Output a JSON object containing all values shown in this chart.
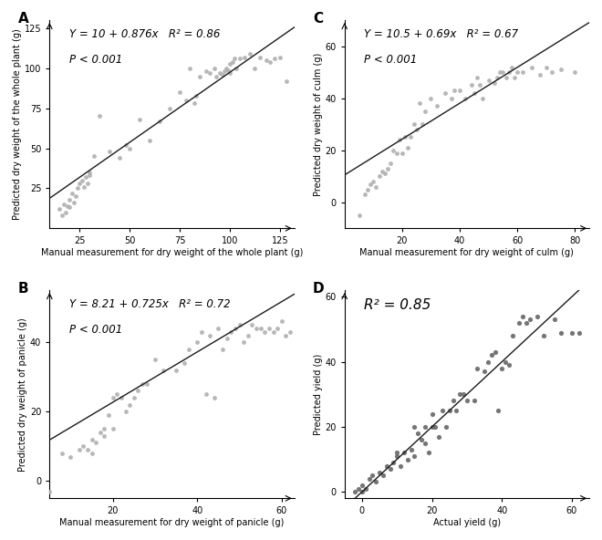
{
  "panel_A": {
    "label": "A",
    "x": [
      15,
      16,
      17,
      18,
      19,
      20,
      20,
      21,
      22,
      23,
      24,
      25,
      26,
      27,
      28,
      29,
      30,
      30,
      32,
      35,
      40,
      45,
      48,
      50,
      55,
      60,
      65,
      70,
      75,
      78,
      80,
      82,
      83,
      85,
      88,
      90,
      92,
      93,
      95,
      96,
      97,
      98,
      99,
      100,
      100,
      101,
      102,
      103,
      105,
      107,
      110,
      112,
      115,
      118,
      120,
      122,
      125,
      128
    ],
    "y": [
      12,
      8,
      15,
      10,
      14,
      13,
      18,
      22,
      16,
      20,
      25,
      28,
      30,
      26,
      32,
      28,
      35,
      33,
      45,
      70,
      48,
      44,
      52,
      50,
      68,
      55,
      67,
      75,
      85,
      80,
      100,
      78,
      83,
      95,
      98,
      97,
      100,
      95,
      97,
      96,
      98,
      100,
      99,
      103,
      97,
      104,
      106,
      100,
      106,
      107,
      109,
      100,
      107,
      105,
      104,
      106,
      107,
      92
    ],
    "intercept": 10,
    "slope": 0.876,
    "r2": 0.86,
    "xlabel": "Manual measurement for dry weight of the whole plant (g)",
    "ylabel": "Predicted dry weight of the whole plant (g)",
    "xlim": [
      10,
      132
    ],
    "ylim": [
      0,
      130
    ],
    "xticks": [
      25,
      50,
      75,
      100,
      125
    ],
    "yticks": [
      25,
      50,
      75,
      100,
      125
    ],
    "eq_text": "Y = 10 + 0.876x",
    "r2_text": "R² = 0.86",
    "p_text": "P < 0.001",
    "line_x": [
      10,
      132
    ]
  },
  "panel_B": {
    "label": "B",
    "x": [
      5,
      8,
      10,
      12,
      13,
      14,
      15,
      15,
      16,
      17,
      18,
      18,
      19,
      20,
      20,
      21,
      22,
      23,
      24,
      25,
      26,
      27,
      28,
      30,
      32,
      35,
      37,
      38,
      40,
      41,
      42,
      43,
      44,
      45,
      46,
      47,
      48,
      49,
      50,
      51,
      52,
      53,
      54,
      55,
      56,
      57,
      58,
      59,
      60,
      61,
      62
    ],
    "y": [
      -3,
      8,
      7,
      9,
      10,
      9,
      8,
      12,
      11,
      14,
      13,
      15,
      19,
      15,
      24,
      25,
      24,
      20,
      22,
      24,
      26,
      28,
      28,
      35,
      32,
      32,
      34,
      38,
      40,
      43,
      25,
      42,
      24,
      44,
      38,
      41,
      43,
      44,
      45,
      40,
      42,
      45,
      44,
      44,
      43,
      44,
      43,
      44,
      46,
      42,
      43
    ],
    "intercept": 8.21,
    "slope": 0.725,
    "r2": 0.72,
    "xlabel": "Manual measurement for dry weight of panicle (g)",
    "ylabel": "Predicted dry weight of panicle (g)",
    "xlim": [
      5,
      63
    ],
    "ylim": [
      -5,
      55
    ],
    "xticks": [
      20,
      40,
      60
    ],
    "yticks": [
      0,
      20,
      40
    ],
    "eq_text": "Y = 8.21 + 0.725x",
    "r2_text": "R² = 0.72",
    "p_text": "P < 0.001",
    "line_x": [
      5,
      63
    ]
  },
  "panel_C": {
    "label": "C",
    "x": [
      5,
      7,
      8,
      9,
      10,
      11,
      12,
      13,
      14,
      15,
      16,
      17,
      18,
      19,
      20,
      21,
      22,
      23,
      24,
      25,
      26,
      27,
      28,
      30,
      32,
      35,
      37,
      38,
      40,
      42,
      44,
      45,
      46,
      47,
      48,
      50,
      52,
      53,
      54,
      55,
      56,
      57,
      58,
      59,
      60,
      62,
      65,
      68,
      70,
      72,
      75,
      80
    ],
    "y": [
      -5,
      3,
      5,
      7,
      8,
      6,
      10,
      12,
      11,
      13,
      15,
      20,
      19,
      24,
      19,
      25,
      21,
      25,
      30,
      28,
      38,
      30,
      35,
      40,
      37,
      42,
      40,
      43,
      43,
      40,
      45,
      42,
      48,
      45,
      40,
      47,
      46,
      48,
      50,
      50,
      48,
      50,
      52,
      48,
      50,
      50,
      52,
      49,
      52,
      50,
      51,
      50
    ],
    "intercept": 10.5,
    "slope": 0.69,
    "r2": 0.67,
    "xlabel": "Manual measurement for dry weight of culm (g)",
    "ylabel": "Predicted dry weight of culm (g)",
    "xlim": [
      0,
      85
    ],
    "ylim": [
      -10,
      70
    ],
    "xticks": [
      20,
      40,
      60,
      80
    ],
    "yticks": [
      0,
      20,
      40,
      60
    ],
    "eq_text": "Y = 10.5 + 0.69x",
    "r2_text": "R² = 0.67",
    "p_text": "P < 0.001",
    "line_x": [
      0,
      85
    ]
  },
  "panel_D": {
    "label": "D",
    "x": [
      -2,
      -1,
      0,
      0,
      1,
      2,
      3,
      4,
      5,
      6,
      7,
      8,
      9,
      10,
      10,
      11,
      12,
      13,
      14,
      15,
      15,
      16,
      17,
      18,
      18,
      19,
      20,
      20,
      21,
      22,
      23,
      24,
      25,
      26,
      27,
      28,
      29,
      30,
      32,
      33,
      35,
      36,
      37,
      38,
      39,
      40,
      41,
      42,
      43,
      45,
      46,
      47,
      48,
      50,
      52,
      55,
      57,
      60,
      62
    ],
    "y": [
      0,
      1,
      0,
      2,
      1,
      4,
      5,
      3,
      6,
      5,
      8,
      7,
      9,
      11,
      12,
      8,
      12,
      10,
      13,
      11,
      20,
      18,
      16,
      20,
      15,
      12,
      20,
      24,
      20,
      17,
      25,
      20,
      25,
      28,
      25,
      30,
      30,
      28,
      28,
      38,
      37,
      40,
      42,
      43,
      25,
      38,
      40,
      39,
      48,
      52,
      54,
      52,
      53,
      54,
      48,
      53,
      49,
      49,
      49
    ],
    "r2": 0.85,
    "xlabel": "Actual yield (g)",
    "ylabel": "Predicted yield (g)",
    "xlim": [
      -5,
      65
    ],
    "ylim": [
      -2,
      62
    ],
    "xticks": [
      0,
      20,
      40,
      60
    ],
    "yticks": [
      0,
      20,
      40,
      60
    ],
    "r2_text": "R² = 0.85",
    "line_x": [
      -5,
      65
    ],
    "line_y": [
      -5,
      65
    ]
  },
  "dot_color_ABC": "#b0b0b0",
  "dot_color_D": "#666666",
  "line_color": "#1a1a1a",
  "dot_size_ABC": 12,
  "dot_size_D": 14,
  "dot_alpha": 0.9
}
